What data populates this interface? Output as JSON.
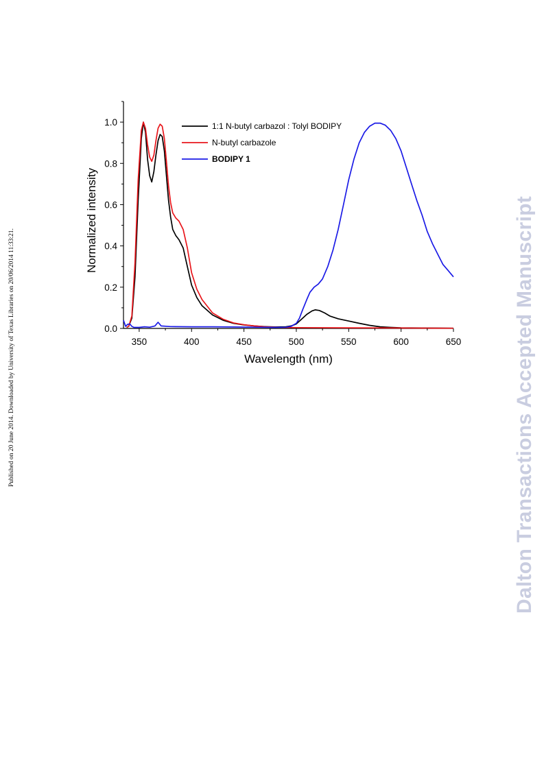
{
  "side_note": "Published on 20 June 2014. Downloaded by University of Texas Libraries on 20/06/2014 11:33:21.",
  "watermark": "Dalton Transactions Accepted Manuscript",
  "colors": {
    "black": "#000000",
    "red": "#e8161b",
    "blue": "#1a1ae6"
  },
  "chart_data": {
    "type": "line",
    "title": "",
    "xlabel": "Wavelength (nm)",
    "ylabel": "Normalized intensity",
    "xlim": [
      335,
      650
    ],
    "ylim": [
      0,
      1.1
    ],
    "xticks": [
      350,
      400,
      450,
      500,
      550,
      600,
      650
    ],
    "yticks": [
      "0.0",
      "0.2",
      "0.4",
      "0.6",
      "0.8",
      "1.0"
    ],
    "grid": false,
    "legend_position": "top-center",
    "series": [
      {
        "name": "1:1 N-butyl carbazol : Tolyl BODIPY",
        "color": "#000000",
        "bold": false,
        "points": [
          [
            338,
            0.005
          ],
          [
            340,
            0.01
          ],
          [
            343,
            0.05
          ],
          [
            346,
            0.25
          ],
          [
            349,
            0.62
          ],
          [
            352,
            0.92
          ],
          [
            354,
            1.0
          ],
          [
            356,
            0.95
          ],
          [
            358,
            0.82
          ],
          [
            360,
            0.74
          ],
          [
            362,
            0.71
          ],
          [
            364,
            0.76
          ],
          [
            366,
            0.84
          ],
          [
            368,
            0.91
          ],
          [
            370,
            0.94
          ],
          [
            372,
            0.93
          ],
          [
            374,
            0.86
          ],
          [
            376,
            0.74
          ],
          [
            378,
            0.62
          ],
          [
            380,
            0.54
          ],
          [
            382,
            0.48
          ],
          [
            385,
            0.45
          ],
          [
            388,
            0.43
          ],
          [
            392,
            0.39
          ],
          [
            396,
            0.3
          ],
          [
            400,
            0.21
          ],
          [
            405,
            0.15
          ],
          [
            410,
            0.11
          ],
          [
            420,
            0.065
          ],
          [
            430,
            0.04
          ],
          [
            440,
            0.025
          ],
          [
            450,
            0.017
          ],
          [
            460,
            0.012
          ],
          [
            470,
            0.009
          ],
          [
            480,
            0.007
          ],
          [
            490,
            0.008
          ],
          [
            495,
            0.012
          ],
          [
            500,
            0.022
          ],
          [
            505,
            0.045
          ],
          [
            510,
            0.068
          ],
          [
            515,
            0.085
          ],
          [
            518,
            0.09
          ],
          [
            522,
            0.087
          ],
          [
            527,
            0.075
          ],
          [
            532,
            0.06
          ],
          [
            540,
            0.047
          ],
          [
            550,
            0.036
          ],
          [
            560,
            0.025
          ],
          [
            570,
            0.015
          ],
          [
            580,
            0.008
          ],
          [
            590,
            0.005
          ],
          [
            600,
            0.003
          ],
          [
            620,
            0.002
          ],
          [
            650,
            0.001
          ]
        ]
      },
      {
        "name": "N-butyl carbazole",
        "color": "#e8161b",
        "bold": false,
        "points": [
          [
            338,
            0.005
          ],
          [
            340,
            0.01
          ],
          [
            343,
            0.06
          ],
          [
            346,
            0.32
          ],
          [
            349,
            0.72
          ],
          [
            352,
            0.96
          ],
          [
            354,
            1.0
          ],
          [
            356,
            0.97
          ],
          [
            358,
            0.89
          ],
          [
            360,
            0.83
          ],
          [
            362,
            0.81
          ],
          [
            364,
            0.84
          ],
          [
            366,
            0.91
          ],
          [
            368,
            0.97
          ],
          [
            370,
            0.99
          ],
          [
            372,
            0.98
          ],
          [
            374,
            0.92
          ],
          [
            376,
            0.81
          ],
          [
            378,
            0.69
          ],
          [
            380,
            0.61
          ],
          [
            382,
            0.56
          ],
          [
            385,
            0.535
          ],
          [
            388,
            0.52
          ],
          [
            392,
            0.48
          ],
          [
            396,
            0.39
          ],
          [
            400,
            0.27
          ],
          [
            405,
            0.19
          ],
          [
            410,
            0.14
          ],
          [
            420,
            0.075
          ],
          [
            430,
            0.045
          ],
          [
            440,
            0.027
          ],
          [
            450,
            0.018
          ],
          [
            460,
            0.012
          ],
          [
            470,
            0.008
          ],
          [
            480,
            0.006
          ],
          [
            490,
            0.005
          ],
          [
            500,
            0.004
          ],
          [
            550,
            0.003
          ],
          [
            600,
            0.002
          ],
          [
            650,
            0.001
          ]
        ]
      },
      {
        "name": "BODIPY 1",
        "color": "#1a1ae6",
        "bold": true,
        "points": [
          [
            335,
            0.04
          ],
          [
            337,
            0.01
          ],
          [
            339,
            0.02
          ],
          [
            341,
            0.022
          ],
          [
            343,
            0.01
          ],
          [
            345,
            0.005
          ],
          [
            350,
            0.005
          ],
          [
            355,
            0.008
          ],
          [
            360,
            0.006
          ],
          [
            365,
            0.012
          ],
          [
            368,
            0.03
          ],
          [
            371,
            0.012
          ],
          [
            380,
            0.009
          ],
          [
            400,
            0.008
          ],
          [
            420,
            0.008
          ],
          [
            440,
            0.007
          ],
          [
            460,
            0.006
          ],
          [
            480,
            0.005
          ],
          [
            490,
            0.006
          ],
          [
            495,
            0.01
          ],
          [
            500,
            0.025
          ],
          [
            503,
            0.05
          ],
          [
            506,
            0.09
          ],
          [
            510,
            0.14
          ],
          [
            513,
            0.175
          ],
          [
            517,
            0.2
          ],
          [
            521,
            0.215
          ],
          [
            525,
            0.24
          ],
          [
            530,
            0.3
          ],
          [
            535,
            0.38
          ],
          [
            540,
            0.48
          ],
          [
            545,
            0.6
          ],
          [
            550,
            0.72
          ],
          [
            555,
            0.82
          ],
          [
            560,
            0.9
          ],
          [
            565,
            0.95
          ],
          [
            570,
            0.98
          ],
          [
            575,
            0.995
          ],
          [
            580,
            0.995
          ],
          [
            585,
            0.985
          ],
          [
            590,
            0.96
          ],
          [
            595,
            0.92
          ],
          [
            600,
            0.86
          ],
          [
            605,
            0.78
          ],
          [
            610,
            0.7
          ],
          [
            615,
            0.62
          ],
          [
            620,
            0.55
          ],
          [
            625,
            0.47
          ],
          [
            630,
            0.41
          ],
          [
            635,
            0.36
          ],
          [
            640,
            0.31
          ],
          [
            645,
            0.28
          ],
          [
            650,
            0.25
          ]
        ]
      }
    ]
  }
}
